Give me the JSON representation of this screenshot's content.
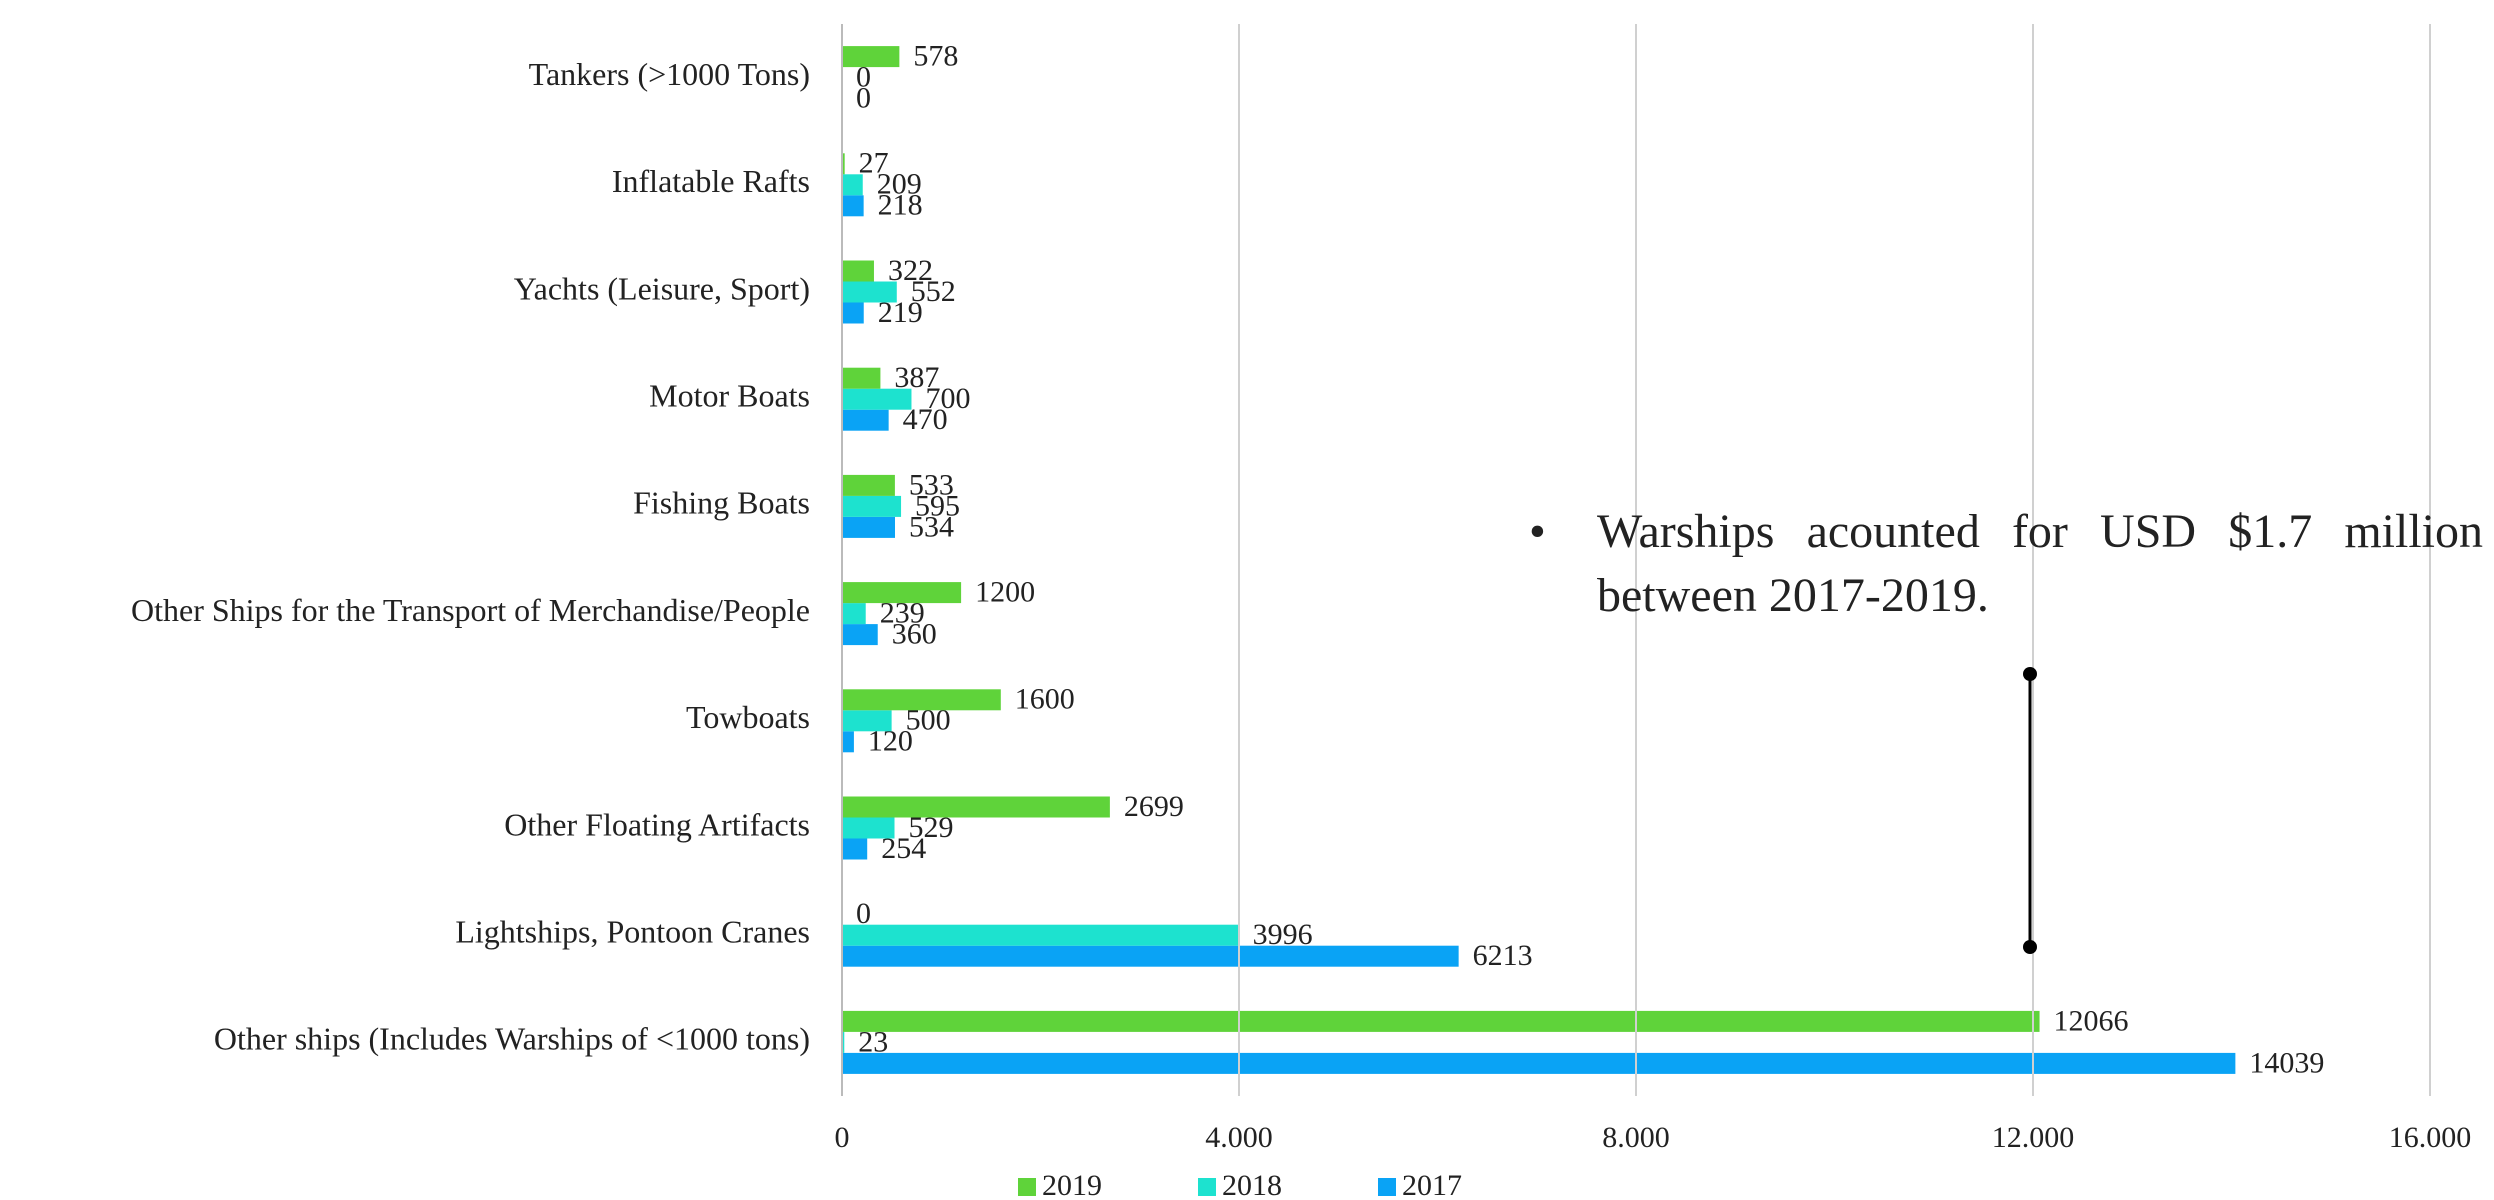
{
  "chart_data": {
    "type": "hbar",
    "categories": [
      "Tankers (>1000 Tons)",
      "Inflatable Rafts",
      "Yachts (Leisure, Sport)",
      "Motor Boats",
      "Fishing Boats",
      "Other Ships for the Transport of Merchandise/People",
      "Towboats",
      "Other Floating Artifacts",
      "Lightships, Pontoon Cranes",
      "Other ships (Includes Warships of <1000 tons)"
    ],
    "series": [
      {
        "name": "2019",
        "color": "#5fd33a",
        "values": [
          578,
          27,
          322,
          387,
          533,
          1200,
          1600,
          2699,
          0,
          12066
        ]
      },
      {
        "name": "2018",
        "color": "#1de2cf",
        "values": [
          0,
          209,
          552,
          700,
          595,
          239,
          500,
          529,
          3996,
          23
        ]
      },
      {
        "name": "2017",
        "color": "#0aa3f5",
        "values": [
          0,
          218,
          219,
          470,
          534,
          360,
          120,
          254,
          6213,
          14039
        ]
      }
    ],
    "xlim": [
      0,
      16000
    ],
    "xticks": [
      0,
      {
        "value": 4000,
        "label": "4.000"
      },
      {
        "value": 8000,
        "label": "8.000"
      },
      {
        "value": 12000,
        "label": "12.000"
      },
      {
        "value": 16000,
        "label": "16.000"
      }
    ],
    "grid": true,
    "legend": "bottom",
    "annotation": "Warships acounted for USD $1.7 million between 2017-2019."
  }
}
